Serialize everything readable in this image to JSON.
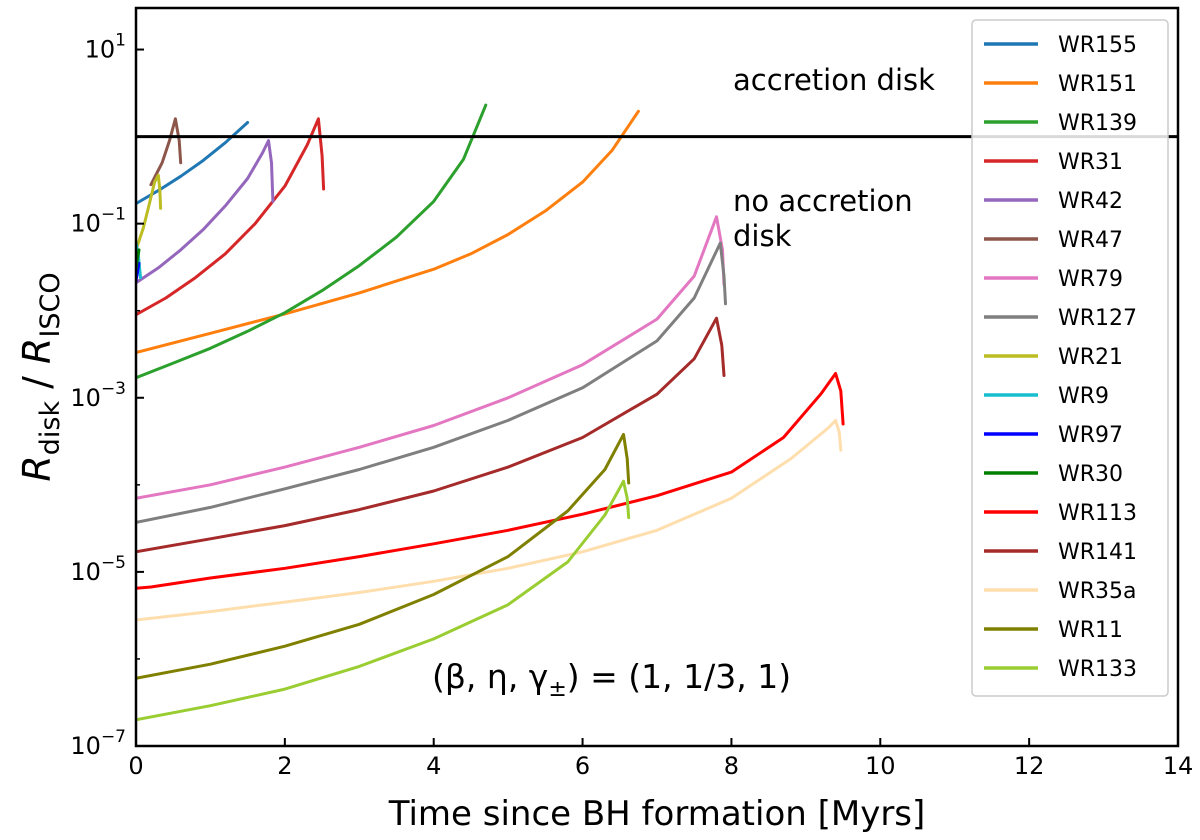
{
  "chart_data": {
    "type": "line",
    "title": "",
    "xlabel": "Time since BH formation [Myrs]",
    "ylabel": {
      "base1": "R",
      "sub1": "disk",
      "sep": " / ",
      "base2": "R",
      "sub2": "ISCO"
    },
    "x_scale": "linear",
    "y_scale": "log",
    "xlim": [
      0,
      14
    ],
    "ylim": [
      1e-07,
      30
    ],
    "x_ticks": [
      0,
      2,
      4,
      6,
      8,
      10,
      12,
      14
    ],
    "x_tick_labels": [
      "0",
      "2",
      "4",
      "6",
      "8",
      "10",
      "12",
      "14"
    ],
    "y_ticks": [
      1e-07,
      1e-05,
      0.001,
      0.1,
      10
    ],
    "y_tick_labels": [
      {
        "base": "10",
        "exp": "−7"
      },
      {
        "base": "10",
        "exp": "−5"
      },
      {
        "base": "10",
        "exp": "−3"
      },
      {
        "base": "10",
        "exp": "−1"
      },
      {
        "base": "10",
        "exp": "1"
      }
    ],
    "grid": false,
    "legend_position": "right",
    "reference_line": {
      "y": 1,
      "color": "#000000"
    },
    "annotations": {
      "above": "accretion disk",
      "below_line1": "no accretion",
      "below_line2": "disk",
      "params": "(β, η, γ",
      "params_sub": "±",
      "params_rest": ") = (1, 1/3, 1)"
    },
    "series": [
      {
        "name": "WR155",
        "color": "#1f77b4",
        "points": [
          [
            0,
            0.17
          ],
          [
            0.3,
            0.24
          ],
          [
            0.6,
            0.35
          ],
          [
            0.9,
            0.53
          ],
          [
            1.2,
            0.85
          ],
          [
            1.5,
            1.45
          ]
        ]
      },
      {
        "name": "WR151",
        "color": "#ff7f0e",
        "points": [
          [
            0,
            0.0033
          ],
          [
            1,
            0.0055
          ],
          [
            2,
            0.0092
          ],
          [
            3,
            0.016
          ],
          [
            4,
            0.03
          ],
          [
            4.5,
            0.045
          ],
          [
            5,
            0.075
          ],
          [
            5.5,
            0.14
          ],
          [
            6,
            0.3
          ],
          [
            6.4,
            0.7
          ],
          [
            6.75,
            1.95
          ]
        ]
      },
      {
        "name": "WR139",
        "color": "#2ca02c",
        "points": [
          [
            0,
            0.0017
          ],
          [
            0.5,
            0.0025
          ],
          [
            1,
            0.0037
          ],
          [
            1.5,
            0.0058
          ],
          [
            2,
            0.0095
          ],
          [
            2.5,
            0.017
          ],
          [
            3,
            0.033
          ],
          [
            3.5,
            0.07
          ],
          [
            4,
            0.18
          ],
          [
            4.4,
            0.55
          ],
          [
            4.7,
            2.3
          ]
        ]
      },
      {
        "name": "WR31",
        "color": "#d62728",
        "points": [
          [
            0,
            0.009
          ],
          [
            0.4,
            0.014
          ],
          [
            0.8,
            0.024
          ],
          [
            1.2,
            0.045
          ],
          [
            1.6,
            0.1
          ],
          [
            2,
            0.27
          ],
          [
            2.3,
            0.8
          ],
          [
            2.45,
            1.6
          ],
          [
            2.5,
            0.6
          ],
          [
            2.52,
            0.25
          ]
        ]
      },
      {
        "name": "WR42",
        "color": "#9467bd",
        "points": [
          [
            0,
            0.021
          ],
          [
            0.3,
            0.031
          ],
          [
            0.6,
            0.05
          ],
          [
            0.9,
            0.085
          ],
          [
            1.2,
            0.16
          ],
          [
            1.5,
            0.33
          ],
          [
            1.7,
            0.65
          ],
          [
            1.78,
            0.9
          ],
          [
            1.82,
            0.5
          ],
          [
            1.84,
            0.18
          ]
        ]
      },
      {
        "name": "WR47",
        "color": "#8c564b",
        "points": [
          [
            0.2,
            0.28
          ],
          [
            0.35,
            0.5
          ],
          [
            0.45,
            0.9
          ],
          [
            0.53,
            1.6
          ],
          [
            0.58,
            0.9
          ],
          [
            0.6,
            0.5
          ]
        ]
      },
      {
        "name": "WR79",
        "color": "#e377c2",
        "points": [
          [
            0,
            7e-05
          ],
          [
            1,
            0.0001
          ],
          [
            2,
            0.00016
          ],
          [
            3,
            0.00027
          ],
          [
            4,
            0.00048
          ],
          [
            5,
            0.001
          ],
          [
            6,
            0.0024
          ],
          [
            7,
            0.008
          ],
          [
            7.5,
            0.025
          ],
          [
            7.8,
            0.12
          ],
          [
            7.88,
            0.05
          ],
          [
            7.9,
            0.02
          ]
        ]
      },
      {
        "name": "WR127",
        "color": "#7f7f7f",
        "points": [
          [
            0,
            3.7e-05
          ],
          [
            1,
            5.5e-05
          ],
          [
            2,
            9e-05
          ],
          [
            3,
            0.00015
          ],
          [
            4,
            0.00027
          ],
          [
            5,
            0.00055
          ],
          [
            6,
            0.0013
          ],
          [
            7,
            0.0045
          ],
          [
            7.5,
            0.014
          ],
          [
            7.85,
            0.06
          ],
          [
            7.9,
            0.025
          ],
          [
            7.92,
            0.012
          ]
        ]
      },
      {
        "name": "WR21",
        "color": "#bcbd22",
        "points": [
          [
            0,
            0.05
          ],
          [
            0.1,
            0.09
          ],
          [
            0.18,
            0.17
          ],
          [
            0.25,
            0.3
          ],
          [
            0.3,
            0.36
          ],
          [
            0.32,
            0.25
          ],
          [
            0.33,
            0.15
          ]
        ]
      },
      {
        "name": "WR9",
        "color": "#17becf",
        "points": [
          [
            0,
            0.06
          ],
          [
            0.03,
            0.045
          ],
          [
            0.05,
            0.03
          ],
          [
            0.06,
            0.024
          ]
        ]
      },
      {
        "name": "WR97",
        "color": "#0000ff",
        "points": [
          [
            0,
            0.022
          ],
          [
            0.02,
            0.028
          ],
          [
            0.04,
            0.035
          ]
        ]
      },
      {
        "name": "WR30",
        "color": "#008000",
        "points": [
          [
            0,
            0.03
          ],
          [
            0.02,
            0.04
          ],
          [
            0.04,
            0.05
          ]
        ]
      },
      {
        "name": "WR113",
        "color": "#ff0000",
        "points": [
          [
            0,
            6.5e-06
          ],
          [
            0.2,
            6.7e-06
          ],
          [
            1,
            8.5e-06
          ],
          [
            2,
            1.1e-05
          ],
          [
            3,
            1.5e-05
          ],
          [
            4,
            2.1e-05
          ],
          [
            5,
            3e-05
          ],
          [
            6,
            4.6e-05
          ],
          [
            7,
            7.5e-05
          ],
          [
            8,
            0.00014
          ],
          [
            8.7,
            0.00035
          ],
          [
            9.2,
            0.0011
          ],
          [
            9.4,
            0.0019
          ],
          [
            9.47,
            0.0012
          ],
          [
            9.5,
            0.0005
          ]
        ]
      },
      {
        "name": "WR141",
        "color": "#a52a2a",
        "points": [
          [
            0,
            1.7e-05
          ],
          [
            1,
            2.4e-05
          ],
          [
            2,
            3.4e-05
          ],
          [
            3,
            5.2e-05
          ],
          [
            4,
            8.5e-05
          ],
          [
            5,
            0.00016
          ],
          [
            6,
            0.00035
          ],
          [
            7,
            0.0011
          ],
          [
            7.5,
            0.0028
          ],
          [
            7.8,
            0.0082
          ],
          [
            7.87,
            0.004
          ],
          [
            7.9,
            0.0018
          ]
        ]
      },
      {
        "name": "WR35a",
        "color": "#ffdead",
        "points": [
          [
            0,
            2.8e-06
          ],
          [
            1,
            3.5e-06
          ],
          [
            2,
            4.5e-06
          ],
          [
            3,
            5.8e-06
          ],
          [
            4,
            7.8e-06
          ],
          [
            5,
            1.1e-05
          ],
          [
            6,
            1.7e-05
          ],
          [
            7,
            3e-05
          ],
          [
            8,
            7e-05
          ],
          [
            8.8,
            0.0002
          ],
          [
            9.3,
            0.00045
          ],
          [
            9.4,
            0.00055
          ],
          [
            9.45,
            0.0004
          ],
          [
            9.47,
            0.00025
          ]
        ]
      },
      {
        "name": "WR11",
        "color": "#808000",
        "points": [
          [
            0,
            6e-07
          ],
          [
            1,
            8.7e-07
          ],
          [
            2,
            1.4e-06
          ],
          [
            3,
            2.5e-06
          ],
          [
            4,
            5.5e-06
          ],
          [
            5,
            1.5e-05
          ],
          [
            5.8,
            5e-05
          ],
          [
            6.3,
            0.00015
          ],
          [
            6.55,
            0.00038
          ],
          [
            6.6,
            0.0002
          ],
          [
            6.62,
            0.000105
          ]
        ]
      },
      {
        "name": "WR133",
        "color": "#9acd32",
        "points": [
          [
            0,
            2e-07
          ],
          [
            1,
            2.9e-07
          ],
          [
            2,
            4.5e-07
          ],
          [
            3,
            8.2e-07
          ],
          [
            4,
            1.7e-06
          ],
          [
            5,
            4.2e-06
          ],
          [
            5.8,
            1.3e-05
          ],
          [
            6.3,
            4.5e-05
          ],
          [
            6.55,
            0.00011
          ],
          [
            6.6,
            7e-05
          ],
          [
            6.62,
            4.2e-05
          ]
        ]
      }
    ]
  }
}
